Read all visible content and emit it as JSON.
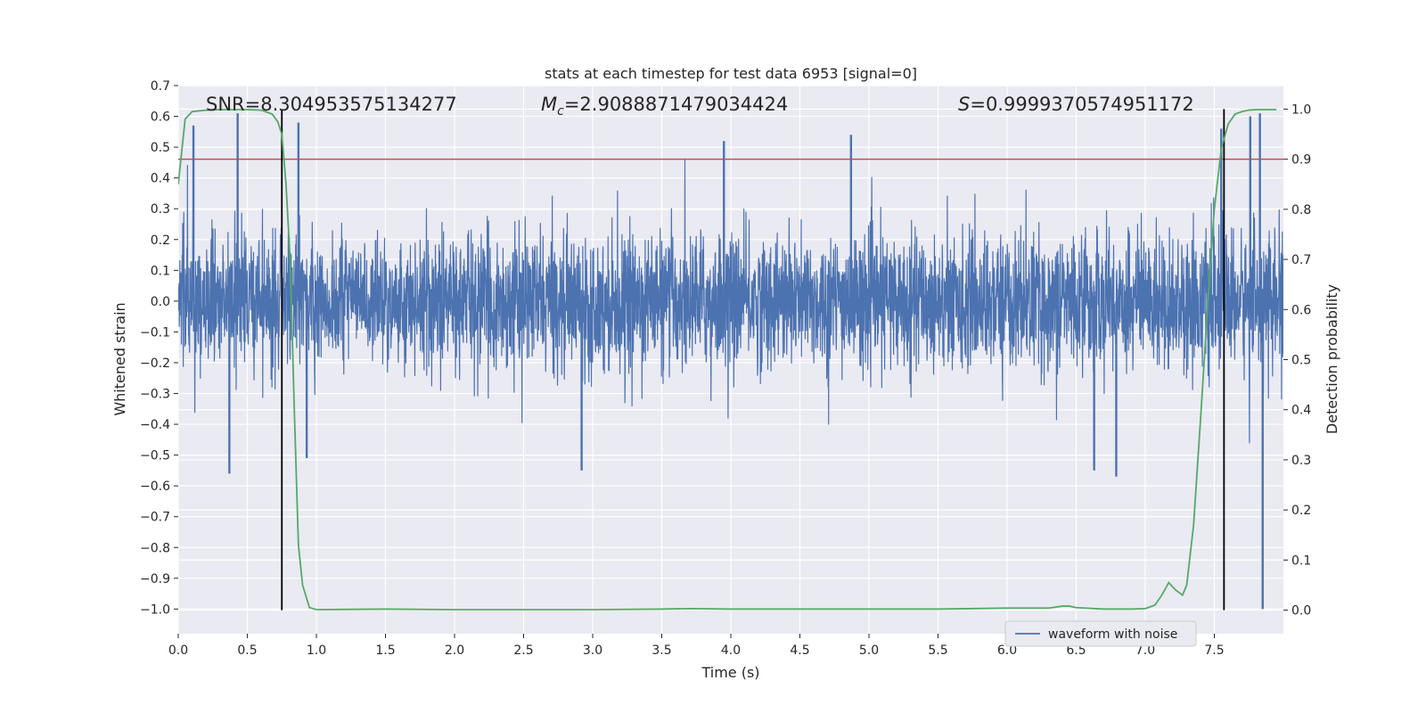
{
  "chart_data": {
    "type": "line",
    "title": "stats at each timestep for test data 6953 [signal=0]",
    "xlabel": "Time (s)",
    "ylabel": "Whitened strain",
    "y2label": "Detection probability",
    "xlim": [
      0.0,
      8.0
    ],
    "ylim": [
      -1.08,
      0.7
    ],
    "y2lim": [
      -0.047,
      1.047
    ],
    "xticks": [
      0.0,
      0.5,
      1.0,
      1.5,
      2.0,
      2.5,
      3.0,
      3.5,
      4.0,
      4.5,
      5.0,
      5.5,
      6.0,
      6.5,
      7.0,
      7.5
    ],
    "xtick_labels": [
      "0.0",
      "0.5",
      "1.0",
      "1.5",
      "2.0",
      "2.5",
      "3.0",
      "3.5",
      "4.0",
      "4.5",
      "5.0",
      "5.5",
      "6.0",
      "6.5",
      "7.0",
      "7.5"
    ],
    "yticks": [
      -1.0,
      -0.9,
      -0.8,
      -0.7,
      -0.6,
      -0.5,
      -0.4,
      -0.3,
      -0.2,
      -0.1,
      0.0,
      0.1,
      0.2,
      0.3,
      0.4,
      0.5,
      0.6,
      0.7
    ],
    "ytick_labels": [
      "−1.0",
      "−0.9",
      "−0.8",
      "−0.7",
      "−0.6",
      "−0.5",
      "−0.4",
      "−0.3",
      "−0.2",
      "−0.1",
      "0.0",
      "0.1",
      "0.2",
      "0.3",
      "0.4",
      "0.5",
      "0.6",
      "0.7"
    ],
    "y2ticks": [
      0.0,
      0.1,
      0.2,
      0.3,
      0.4,
      0.5,
      0.6,
      0.7,
      0.8,
      0.9,
      1.0
    ],
    "y2tick_labels": [
      "0.0",
      "0.1",
      "0.2",
      "0.3",
      "0.4",
      "0.5",
      "0.6",
      "0.7",
      "0.8",
      "0.9",
      "1.0"
    ],
    "annotations": {
      "snr": "SNR=8.304953575134277",
      "mc_symbol": "M",
      "mc_sub": "c",
      "mc_value": "=2.9088871479034424",
      "s_symbol": "S",
      "s_value": "=0.9999370574951172"
    },
    "threshold_y2": 0.9,
    "vlines_x": [
      0.75,
      7.57
    ],
    "legend": {
      "label": "waveform with noise",
      "location": "lower-right"
    },
    "colors": {
      "waveform": "#4c72b0",
      "probability": "#55a868",
      "threshold": "#c44e52",
      "vline": "#000000",
      "background": "#eaeaf2",
      "grid": "#ffffff"
    },
    "waveform": {
      "description": "whitened noisy strain, ~2048 Hz, core amplitude within about ±0.3",
      "duration": 8.0,
      "spikes": [
        {
          "x": 0.11,
          "y": 0.57
        },
        {
          "x": 0.37,
          "y": -0.56
        },
        {
          "x": 0.43,
          "y": 0.61
        },
        {
          "x": 0.87,
          "y": 0.58
        },
        {
          "x": 0.93,
          "y": -0.51
        },
        {
          "x": 2.92,
          "y": -0.55
        },
        {
          "x": 3.95,
          "y": 0.52
        },
        {
          "x": 4.87,
          "y": 0.54
        },
        {
          "x": 6.63,
          "y": -0.55
        },
        {
          "x": 6.79,
          "y": -0.57
        },
        {
          "x": 7.55,
          "y": 0.56
        },
        {
          "x": 7.76,
          "y": 0.6
        },
        {
          "x": 7.83,
          "y": 0.61
        },
        {
          "x": 7.85,
          "y": -1.0
        }
      ]
    },
    "probability": {
      "x": [
        0.0,
        0.05,
        0.1,
        0.2,
        0.3,
        0.4,
        0.5,
        0.6,
        0.68,
        0.72,
        0.75,
        0.78,
        0.81,
        0.84,
        0.87,
        0.9,
        0.95,
        1.0,
        1.5,
        2.0,
        2.5,
        3.0,
        3.5,
        3.7,
        4.0,
        4.5,
        5.0,
        5.5,
        6.0,
        6.3,
        6.4,
        6.45,
        6.5,
        6.7,
        6.9,
        7.0,
        7.07,
        7.12,
        7.17,
        7.22,
        7.27,
        7.3,
        7.35,
        7.4,
        7.45,
        7.5,
        7.55,
        7.6,
        7.65,
        7.7,
        7.75,
        7.8,
        7.95
      ],
      "y": [
        0.85,
        0.98,
        0.995,
        0.998,
        0.999,
        0.999,
        0.999,
        0.998,
        0.99,
        0.975,
        0.95,
        0.85,
        0.7,
        0.4,
        0.13,
        0.05,
        0.005,
        0.001,
        0.002,
        0.001,
        0.001,
        0.001,
        0.002,
        0.003,
        0.002,
        0.002,
        0.002,
        0.002,
        0.004,
        0.004,
        0.008,
        0.008,
        0.005,
        0.002,
        0.002,
        0.003,
        0.01,
        0.03,
        0.055,
        0.04,
        0.03,
        0.05,
        0.17,
        0.38,
        0.6,
        0.8,
        0.92,
        0.97,
        0.99,
        0.995,
        0.998,
        0.999,
        0.999
      ]
    }
  }
}
